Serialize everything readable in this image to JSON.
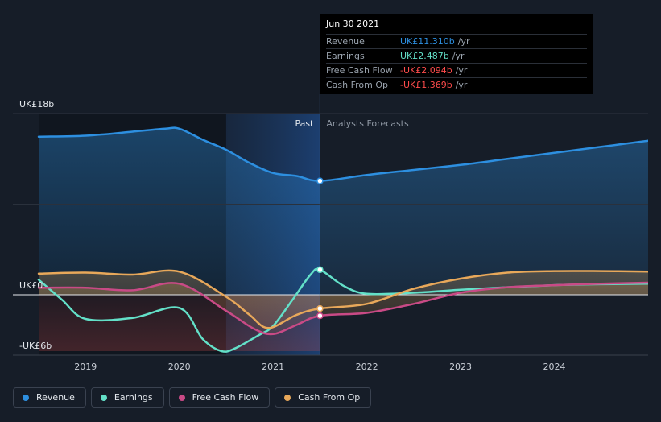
{
  "tooltip": {
    "date": "Jun 30 2021",
    "rows": [
      {
        "label": "Revenue",
        "value": "UK£11.310b",
        "unit": "/yr",
        "color": "#2d8fe0"
      },
      {
        "label": "Earnings",
        "value": "UK£2.487b",
        "unit": "/yr",
        "color": "#63e0c8"
      },
      {
        "label": "Free Cash Flow",
        "value": "-UK£2.094b",
        "unit": "/yr",
        "color": "#ff4c4c"
      },
      {
        "label": "Cash From Op",
        "value": "-UK£1.369b",
        "unit": "/yr",
        "color": "#ff4c4c"
      }
    ]
  },
  "legend": [
    {
      "label": "Revenue",
      "color": "#2d8fe0"
    },
    {
      "label": "Earnings",
      "color": "#63e0c8"
    },
    {
      "label": "Free Cash Flow",
      "color": "#c94a86"
    },
    {
      "label": "Cash From Op",
      "color": "#e8a85a"
    }
  ],
  "chart_data": {
    "type": "line",
    "title": "",
    "y_unit": "UK£b",
    "ylim": [
      -6,
      18
    ],
    "y_tick_labels": [
      {
        "value": 18,
        "label": "UK£18b"
      },
      {
        "value": 0,
        "label": "UK£0"
      },
      {
        "value": -6,
        "label": "-UK£6b"
      }
    ],
    "xlim": [
      2018.5,
      2025.0
    ],
    "x_ticks": [
      2019,
      2020,
      2021,
      2022,
      2023,
      2024
    ],
    "past_label": "Past",
    "forecast_label": "Analysts Forecasts",
    "past_shade_start": 2020.5,
    "divider": 2021.5,
    "series": [
      {
        "name": "Revenue",
        "color": "#2d8fe0",
        "fill": true,
        "x": [
          2018.5,
          2019.0,
          2019.5,
          2019.85,
          2020.0,
          2020.25,
          2020.5,
          2020.75,
          2021.0,
          2021.25,
          2021.5,
          2022.0,
          2022.5,
          2023.0,
          2023.5,
          2024.0,
          2024.5,
          2025.0
        ],
        "y": [
          15.7,
          15.8,
          16.2,
          16.5,
          16.5,
          15.4,
          14.4,
          13.1,
          12.1,
          11.8,
          11.31,
          11.9,
          12.4,
          12.9,
          13.5,
          14.1,
          14.7,
          15.3
        ]
      },
      {
        "name": "Earnings",
        "color": "#63e0c8",
        "fill": false,
        "x": [
          2018.5,
          2018.75,
          2019.0,
          2019.5,
          2020.0,
          2020.25,
          2020.45,
          2020.6,
          2020.85,
          2021.0,
          2021.2,
          2021.4,
          2021.5,
          2021.75,
          2022.0,
          2022.5,
          2023.0,
          2023.5,
          2024.0,
          2024.5,
          2025.0
        ],
        "y": [
          1.5,
          -0.5,
          -2.4,
          -2.3,
          -1.3,
          -4.4,
          -5.6,
          -5.3,
          -4.0,
          -3.1,
          -0.6,
          2.0,
          2.49,
          0.9,
          0.1,
          0.2,
          0.5,
          0.75,
          0.95,
          1.05,
          1.1
        ]
      },
      {
        "name": "Free Cash Flow",
        "color": "#c94a86",
        "fill": true,
        "x": [
          2018.5,
          2019.0,
          2019.5,
          2020.0,
          2020.5,
          2020.8,
          2021.0,
          2021.25,
          2021.5,
          2022.0,
          2022.5,
          2023.0,
          2023.5,
          2024.0,
          2024.5,
          2025.0
        ],
        "y": [
          0.7,
          0.7,
          0.45,
          1.1,
          -1.6,
          -3.4,
          -3.9,
          -3.0,
          -2.09,
          -1.8,
          -0.9,
          0.2,
          0.75,
          0.95,
          1.1,
          1.2
        ]
      },
      {
        "name": "Cash From Op",
        "color": "#e8a85a",
        "fill": true,
        "x": [
          2018.5,
          2019.0,
          2019.5,
          2020.0,
          2020.5,
          2020.75,
          2020.95,
          2021.25,
          2021.5,
          2022.0,
          2022.5,
          2023.0,
          2023.5,
          2024.0,
          2024.5,
          2025.0
        ],
        "y": [
          2.1,
          2.2,
          2.0,
          2.3,
          -0.2,
          -2.0,
          -3.3,
          -2.0,
          -1.37,
          -0.9,
          0.6,
          1.6,
          2.2,
          2.35,
          2.35,
          2.3
        ]
      }
    ]
  }
}
